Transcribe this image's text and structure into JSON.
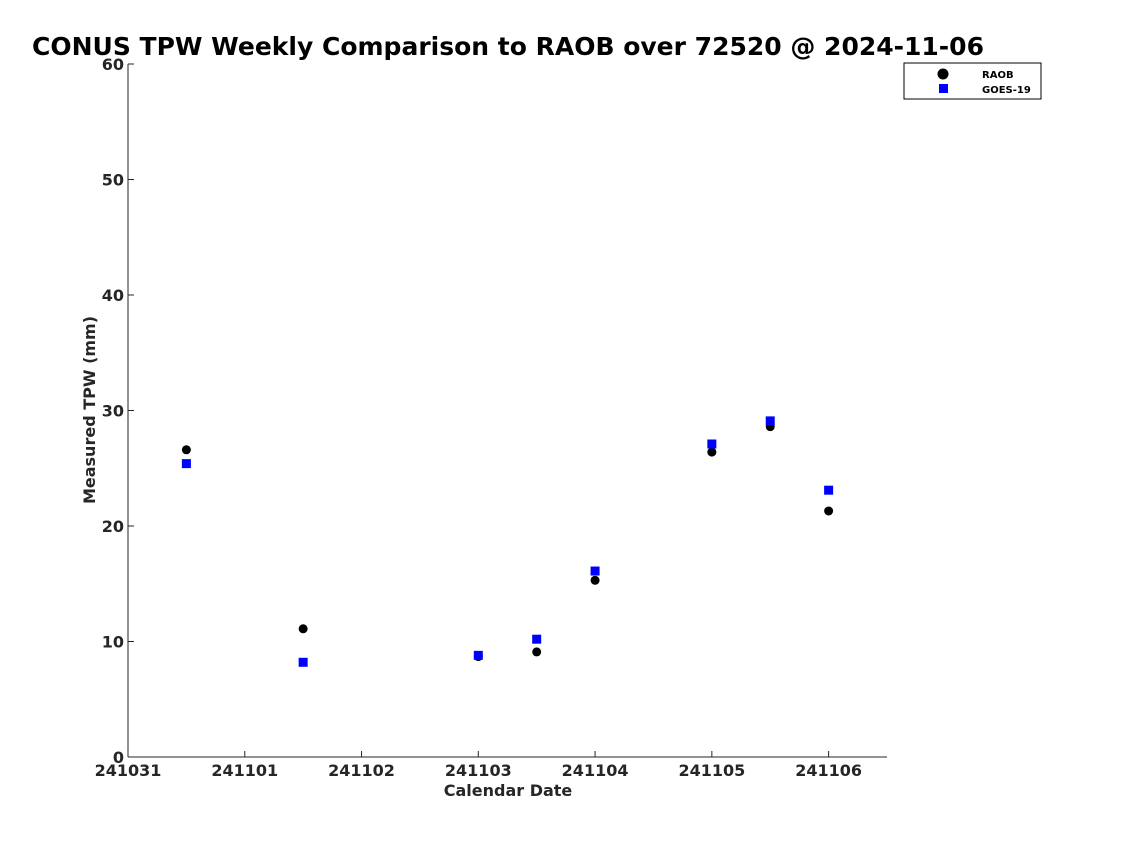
{
  "chart_data": {
    "type": "scatter",
    "title": "CONUS TPW Weekly Comparison to RAOB over 72520 @ 2024-11-06",
    "xlabel": "Calendar Date",
    "ylabel": "Measured TPW (mm)",
    "xlim": [
      0,
      6.5
    ],
    "ylim": [
      0,
      60
    ],
    "x_tick_values": [
      0,
      1,
      2,
      3,
      4,
      5,
      6
    ],
    "x_tick_labels": [
      "241031",
      "241101",
      "241102",
      "241103",
      "241104",
      "241105",
      "241106"
    ],
    "y_tick_values": [
      0,
      10,
      20,
      30,
      40,
      50,
      60
    ],
    "y_tick_labels": [
      "0",
      "10",
      "20",
      "30",
      "40",
      "50",
      "60"
    ],
    "legend_position": "top-right",
    "series": [
      {
        "name": "RAOB",
        "marker": "circle",
        "color": "#000000",
        "x": [
          0.5,
          1.5,
          3.0,
          3.5,
          4.0,
          5.0,
          5.5,
          6.0
        ],
        "y": [
          26.6,
          11.1,
          8.7,
          9.1,
          15.3,
          26.4,
          28.6,
          21.3
        ]
      },
      {
        "name": "GOES-19",
        "marker": "square",
        "color": "#0000ff",
        "x": [
          0.5,
          1.5,
          3.0,
          3.5,
          4.0,
          5.0,
          5.5,
          6.0
        ],
        "y": [
          25.4,
          8.2,
          8.8,
          10.2,
          16.1,
          27.1,
          29.1,
          23.1
        ]
      }
    ]
  }
}
